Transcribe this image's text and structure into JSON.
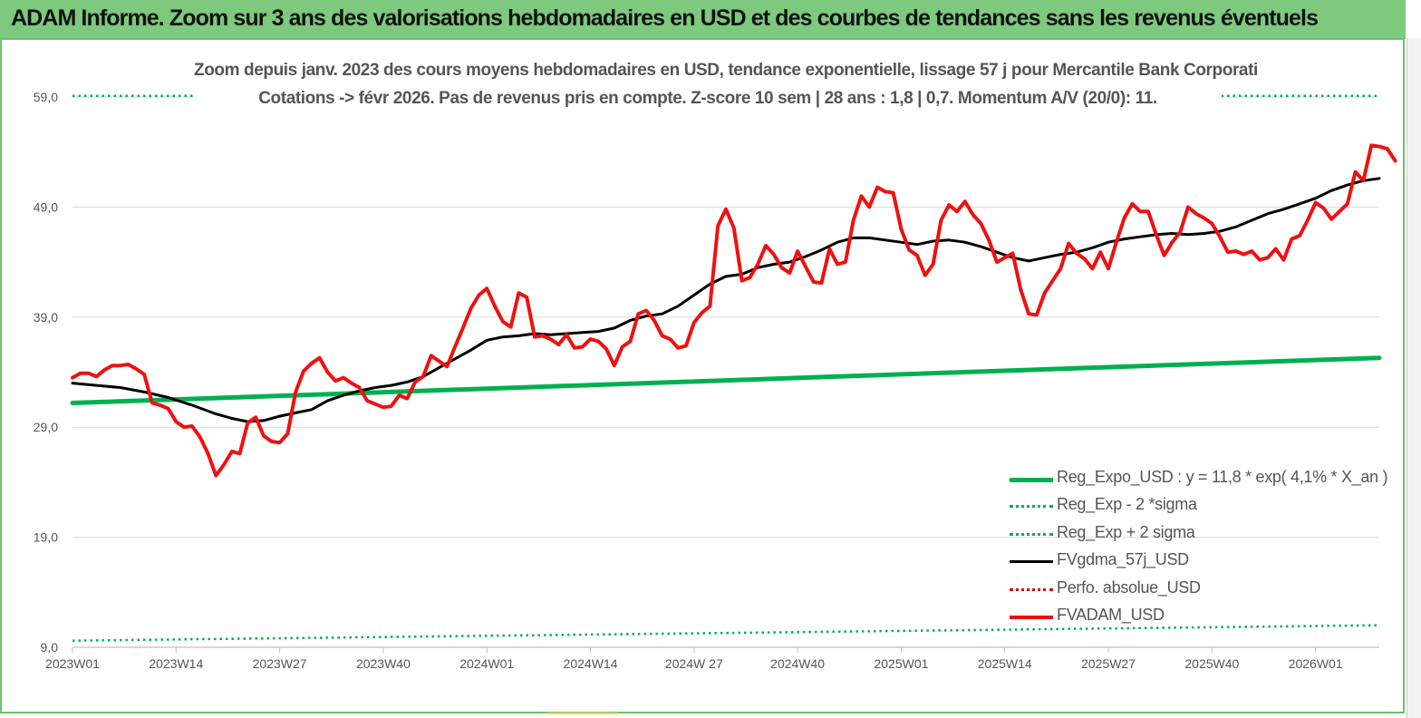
{
  "header": {
    "title": "ADAM Informe. Zoom sur 3 ans des valorisations hebdomadaires en USD et des courbes de tendances sans les revenus éventuels"
  },
  "chart_data": {
    "type": "line",
    "title_line1": "Zoom depuis janv. 2023 des cours moyens hebdomadaires en USD, tendance exponentielle, lissage 57 j pour Mercantile Bank Corporati",
    "title_line2": "Cotations -> févr 2026.  Pas de revenus pris en compte. Z-score 10 sem  | 28 ans : 1,8 | 0,7. Momentum A/V (20/0): 11.",
    "ylim": [
      9,
      59
    ],
    "y_ticks": [
      "9,0",
      "19,0",
      "29,0",
      "39,0",
      "49,0",
      "59,0"
    ],
    "y_tick_values": [
      9,
      19,
      29,
      39,
      49,
      59
    ],
    "x_ticks": [
      "2023W01",
      "2023W14",
      "2023W27",
      "2023W40",
      "2024W01",
      "2024W14",
      "2024W 27",
      "2024W40",
      "2025W01",
      "2025W14",
      "2025W27",
      "2025W40",
      "2026W01"
    ],
    "x_tick_weeks": [
      0,
      13,
      26,
      39,
      52,
      65,
      78,
      91,
      104,
      117,
      130,
      143,
      156
    ],
    "x_max_week": 164,
    "grid": "horizontal",
    "legend_position": "bottom-right",
    "series": [
      {
        "name": "Reg_Expo_USD : y = 11,8 * exp( 4,1% *  X_an )",
        "color": "#00b050",
        "style": "solid",
        "width": 5,
        "points": [
          [
            0,
            31.2
          ],
          [
            164,
            35.3
          ]
        ]
      },
      {
        "name": "Reg_Exp - 2 *sigma",
        "color": "#00b050",
        "style": "dotted",
        "width": 2.5,
        "points": [
          [
            0,
            9.6
          ],
          [
            164,
            11.0
          ]
        ]
      },
      {
        "name": "Reg_Exp + 2 sigma",
        "color": "#00b050",
        "style": "dotted",
        "width": 2.5,
        "points": [
          [
            0,
            59.1
          ],
          [
            17,
            59.1
          ],
          [
            146,
            59.1
          ],
          [
            164,
            59.1
          ]
        ]
      },
      {
        "name": "FVgdma_57j_USD",
        "color": "#000000",
        "style": "solid",
        "width": 3,
        "points": [
          [
            0,
            33.0
          ],
          [
            3,
            32.8
          ],
          [
            6,
            32.6
          ],
          [
            9,
            32.2
          ],
          [
            12,
            31.7
          ],
          [
            15,
            31.0
          ],
          [
            18,
            30.2
          ],
          [
            20,
            29.8
          ],
          [
            22,
            29.5
          ],
          [
            24,
            29.6
          ],
          [
            26,
            30.0
          ],
          [
            28,
            30.3
          ],
          [
            30,
            30.6
          ],
          [
            32,
            31.4
          ],
          [
            34,
            31.9
          ],
          [
            36,
            32.3
          ],
          [
            38,
            32.6
          ],
          [
            40,
            32.8
          ],
          [
            42,
            33.1
          ],
          [
            44,
            33.6
          ],
          [
            46,
            34.4
          ],
          [
            48,
            35.2
          ],
          [
            50,
            36.0
          ],
          [
            52,
            36.9
          ],
          [
            54,
            37.2
          ],
          [
            56,
            37.3
          ],
          [
            58,
            37.5
          ],
          [
            60,
            37.4
          ],
          [
            62,
            37.5
          ],
          [
            64,
            37.6
          ],
          [
            66,
            37.7
          ],
          [
            68,
            38.0
          ],
          [
            70,
            38.7
          ],
          [
            72,
            39.1
          ],
          [
            74,
            39.3
          ],
          [
            76,
            40.0
          ],
          [
            78,
            41.0
          ],
          [
            80,
            42.0
          ],
          [
            82,
            42.7
          ],
          [
            84,
            42.9
          ],
          [
            86,
            43.5
          ],
          [
            88,
            43.8
          ],
          [
            90,
            44.0
          ],
          [
            92,
            44.5
          ],
          [
            94,
            45.1
          ],
          [
            96,
            45.8
          ],
          [
            98,
            46.2
          ],
          [
            100,
            46.2
          ],
          [
            102,
            46.0
          ],
          [
            104,
            45.8
          ],
          [
            106,
            45.6
          ],
          [
            108,
            45.9
          ],
          [
            110,
            46.0
          ],
          [
            112,
            45.8
          ],
          [
            114,
            45.4
          ],
          [
            116,
            44.9
          ],
          [
            118,
            44.4
          ],
          [
            120,
            44.1
          ],
          [
            122,
            44.4
          ],
          [
            124,
            44.7
          ],
          [
            126,
            44.9
          ],
          [
            128,
            45.3
          ],
          [
            130,
            45.8
          ],
          [
            132,
            46.1
          ],
          [
            134,
            46.3
          ],
          [
            136,
            46.5
          ],
          [
            138,
            46.6
          ],
          [
            140,
            46.5
          ],
          [
            142,
            46.6
          ],
          [
            144,
            46.8
          ],
          [
            146,
            47.2
          ],
          [
            148,
            47.8
          ],
          [
            150,
            48.4
          ],
          [
            152,
            48.8
          ],
          [
            154,
            49.3
          ],
          [
            156,
            49.8
          ],
          [
            158,
            50.5
          ],
          [
            160,
            51.0
          ],
          [
            162,
            51.4
          ],
          [
            164,
            51.6
          ]
        ]
      },
      {
        "name": "Perfo. absolue_USD",
        "color": "#e00000",
        "style": "dotted",
        "width": 2.5,
        "points": []
      },
      {
        "name": "FVADAM_USD",
        "color": "#ee1111",
        "style": "solid",
        "width": 4,
        "points": [
          [
            0,
            33.5
          ],
          [
            1,
            33.9
          ],
          [
            2,
            33.9
          ],
          [
            3,
            33.6
          ],
          [
            4,
            34.2
          ],
          [
            5,
            34.6
          ],
          [
            6,
            34.6
          ],
          [
            7,
            34.7
          ],
          [
            8,
            34.3
          ],
          [
            9,
            33.8
          ],
          [
            10,
            31.2
          ],
          [
            11,
            31.0
          ],
          [
            12,
            30.7
          ],
          [
            13,
            29.5
          ],
          [
            14,
            29.0
          ],
          [
            15,
            29.1
          ],
          [
            16,
            28.1
          ],
          [
            17,
            26.6
          ],
          [
            18,
            24.6
          ],
          [
            19,
            25.6
          ],
          [
            20,
            26.8
          ],
          [
            21,
            26.6
          ],
          [
            22,
            29.4
          ],
          [
            23,
            29.9
          ],
          [
            24,
            28.2
          ],
          [
            25,
            27.7
          ],
          [
            26,
            27.6
          ],
          [
            27,
            28.4
          ],
          [
            28,
            32.2
          ],
          [
            29,
            34.1
          ],
          [
            30,
            34.8
          ],
          [
            31,
            35.3
          ],
          [
            32,
            34.0
          ],
          [
            33,
            33.2
          ],
          [
            34,
            33.5
          ],
          [
            35,
            33.0
          ],
          [
            36,
            32.6
          ],
          [
            37,
            31.4
          ],
          [
            38,
            31.1
          ],
          [
            39,
            30.8
          ],
          [
            40,
            30.9
          ],
          [
            41,
            31.9
          ],
          [
            42,
            31.6
          ],
          [
            43,
            33.1
          ],
          [
            44,
            33.6
          ],
          [
            45,
            35.5
          ],
          [
            46,
            35.0
          ],
          [
            47,
            34.5
          ],
          [
            48,
            36.3
          ],
          [
            49,
            38.0
          ],
          [
            50,
            39.8
          ],
          [
            51,
            41.0
          ],
          [
            52,
            41.6
          ],
          [
            53,
            40.0
          ],
          [
            54,
            38.6
          ],
          [
            55,
            38.1
          ],
          [
            56,
            41.2
          ],
          [
            57,
            40.8
          ],
          [
            58,
            37.2
          ],
          [
            59,
            37.3
          ],
          [
            60,
            37.0
          ],
          [
            61,
            36.5
          ],
          [
            62,
            37.4
          ],
          [
            63,
            36.2
          ],
          [
            64,
            36.3
          ],
          [
            65,
            37.0
          ],
          [
            66,
            36.8
          ],
          [
            67,
            36.1
          ],
          [
            68,
            34.6
          ],
          [
            69,
            36.3
          ],
          [
            70,
            36.8
          ],
          [
            71,
            39.3
          ],
          [
            72,
            39.6
          ],
          [
            73,
            38.7
          ],
          [
            74,
            37.3
          ],
          [
            75,
            37.0
          ],
          [
            76,
            36.2
          ],
          [
            77,
            36.4
          ],
          [
            78,
            38.5
          ],
          [
            79,
            39.4
          ],
          [
            80,
            40.0
          ],
          [
            81,
            47.3
          ],
          [
            82,
            48.8
          ],
          [
            83,
            47.1
          ],
          [
            84,
            42.3
          ],
          [
            85,
            42.6
          ],
          [
            86,
            43.8
          ],
          [
            87,
            45.5
          ],
          [
            88,
            44.7
          ],
          [
            89,
            43.5
          ],
          [
            90,
            43.0
          ],
          [
            91,
            45.0
          ],
          [
            92,
            43.6
          ],
          [
            93,
            42.2
          ],
          [
            94,
            42.1
          ],
          [
            95,
            45.2
          ],
          [
            96,
            43.8
          ],
          [
            97,
            44.0
          ],
          [
            98,
            47.8
          ],
          [
            99,
            50.0
          ],
          [
            100,
            49.0
          ],
          [
            101,
            50.8
          ],
          [
            102,
            50.4
          ],
          [
            103,
            50.3
          ],
          [
            104,
            47.0
          ],
          [
            105,
            45.1
          ],
          [
            106,
            44.6
          ],
          [
            107,
            42.8
          ],
          [
            108,
            43.8
          ],
          [
            109,
            47.8
          ],
          [
            110,
            49.2
          ],
          [
            111,
            48.6
          ],
          [
            112,
            49.5
          ],
          [
            113,
            48.3
          ],
          [
            114,
            47.5
          ],
          [
            115,
            46.0
          ],
          [
            116,
            44.0
          ],
          [
            117,
            44.4
          ],
          [
            118,
            44.8
          ],
          [
            119,
            41.5
          ],
          [
            120,
            39.3
          ],
          [
            121,
            39.2
          ],
          [
            122,
            41.2
          ],
          [
            123,
            42.3
          ],
          [
            124,
            43.4
          ],
          [
            125,
            45.7
          ],
          [
            126,
            44.8
          ],
          [
            127,
            44.3
          ],
          [
            128,
            43.4
          ],
          [
            129,
            44.9
          ],
          [
            130,
            43.4
          ],
          [
            131,
            45.8
          ],
          [
            132,
            48.0
          ],
          [
            133,
            49.3
          ],
          [
            134,
            48.6
          ],
          [
            135,
            48.6
          ],
          [
            136,
            46.5
          ],
          [
            137,
            44.6
          ],
          [
            138,
            45.8
          ],
          [
            139,
            46.7
          ],
          [
            140,
            49.0
          ],
          [
            141,
            48.4
          ],
          [
            142,
            48.0
          ],
          [
            143,
            47.5
          ],
          [
            144,
            46.3
          ],
          [
            145,
            44.9
          ],
          [
            146,
            45.0
          ],
          [
            147,
            44.7
          ],
          [
            148,
            45.0
          ],
          [
            149,
            44.2
          ],
          [
            150,
            44.4
          ],
          [
            151,
            45.2
          ],
          [
            152,
            44.2
          ],
          [
            153,
            46.1
          ],
          [
            154,
            46.4
          ],
          [
            155,
            47.8
          ],
          [
            156,
            49.4
          ],
          [
            157,
            48.9
          ],
          [
            158,
            47.9
          ],
          [
            159,
            48.6
          ],
          [
            160,
            49.3
          ],
          [
            161,
            52.2
          ],
          [
            162,
            51.4
          ],
          [
            163,
            54.6
          ],
          [
            164,
            54.5
          ],
          [
            165,
            54.3
          ],
          [
            166,
            53.2
          ]
        ]
      }
    ]
  }
}
